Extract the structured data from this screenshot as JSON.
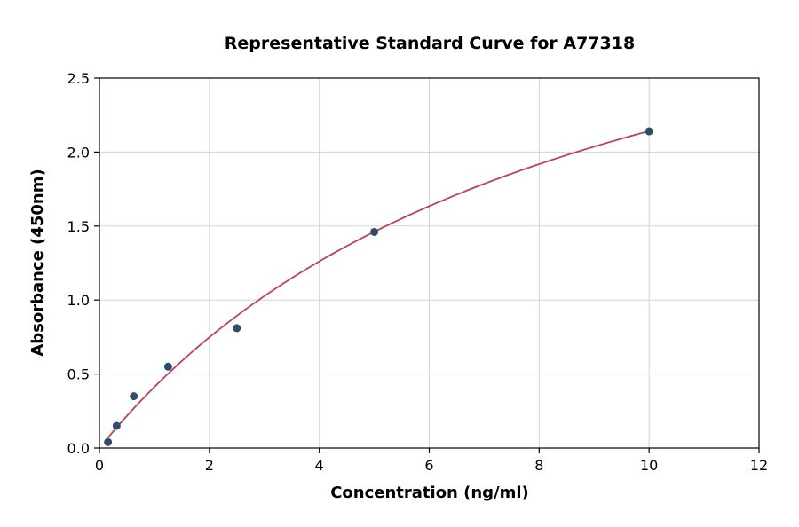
{
  "chart_data": {
    "type": "scatter",
    "title": "Representative Standard Curve for A77318",
    "xlabel": "Concentration (ng/ml)",
    "ylabel": "Absorbance (450nm)",
    "xlim": [
      0,
      12
    ],
    "ylim": [
      0,
      2.5
    ],
    "x_ticks": [
      0,
      2,
      4,
      6,
      8,
      10,
      12
    ],
    "x_tick_labels": [
      "0",
      "2",
      "4",
      "6",
      "8",
      "10",
      "12"
    ],
    "y_ticks": [
      0.0,
      0.5,
      1.0,
      1.5,
      2.0,
      2.5
    ],
    "y_tick_labels": [
      "0.0",
      "0.5",
      "1.0",
      "1.5",
      "2.0",
      "2.5"
    ],
    "grid": true,
    "legend": "none",
    "points": [
      {
        "x": 0.156,
        "y": 0.04
      },
      {
        "x": 0.313,
        "y": 0.15
      },
      {
        "x": 0.625,
        "y": 0.35
      },
      {
        "x": 1.25,
        "y": 0.55
      },
      {
        "x": 2.5,
        "y": 0.81
      },
      {
        "x": 5,
        "y": 1.46
      },
      {
        "x": 10,
        "y": 2.14
      }
    ],
    "fit_curve": {
      "model": "saturation y = a*x/(b+x)",
      "a": 4.01,
      "b": 8.72,
      "x_start": 0.1,
      "x_end": 10
    },
    "colors": {
      "points": "#2e4d6b",
      "curve": "#c23c63",
      "grid": "#d3d3d3",
      "frame": "#000000",
      "background": "#ffffff"
    }
  }
}
